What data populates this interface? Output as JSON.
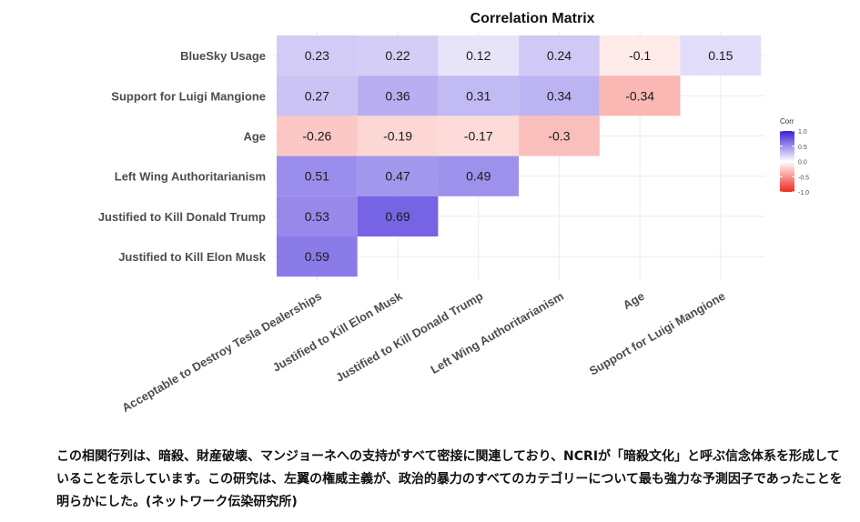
{
  "colors": {
    "negative": "#ef2b1f",
    "neutral": "#ffffff",
    "positive": "#3a1fd8",
    "grid": "#ebebeb",
    "label_text": "#4d4d4d"
  },
  "chart_data": {
    "type": "heatmap",
    "title": "Correlation Matrix",
    "columns": [
      "Acceptable to Destroy Tesla Dealerships",
      "Justified to Kill Elon Musk",
      "Justified to Kill Donald Trump",
      "Left Wing Authoritarianism",
      "Age",
      "Support for Luigi Mangione"
    ],
    "rows": [
      {
        "label": "BlueSky Usage",
        "values": [
          0.23,
          0.22,
          0.12,
          0.24,
          -0.1,
          0.15
        ]
      },
      {
        "label": "Support for Luigi Mangione",
        "values": [
          0.27,
          0.36,
          0.31,
          0.34,
          -0.34
        ]
      },
      {
        "label": "Age",
        "values": [
          -0.26,
          -0.19,
          -0.17,
          -0.3
        ]
      },
      {
        "label": "Left Wing Authoritarianism",
        "values": [
          0.51,
          0.47,
          0.49
        ]
      },
      {
        "label": "Justified to Kill Donald Trump",
        "values": [
          0.53,
          0.69
        ]
      },
      {
        "label": "Justified to Kill Elon Musk",
        "values": [
          0.59
        ]
      }
    ],
    "legend": {
      "title": "Corr",
      "ticks": [
        "1.0",
        "0.5",
        "0.0",
        "-0.5",
        "-1.0"
      ],
      "range": [
        -1,
        1
      ],
      "placement": "right"
    },
    "grid": true
  },
  "caption": "この相関行列は、暗殺、財産破壊、マンジョーネへの支持がすべて密接に関連しており、NCRIが「暗殺文化」と呼ぶ信念体系を形成していることを示しています。この研究は、左翼の権威主義が、政治的暴力のすべてのカテゴリーについて最も強力な予測因子であったことを明らかにした。(ネットワーク伝染研究所)"
}
